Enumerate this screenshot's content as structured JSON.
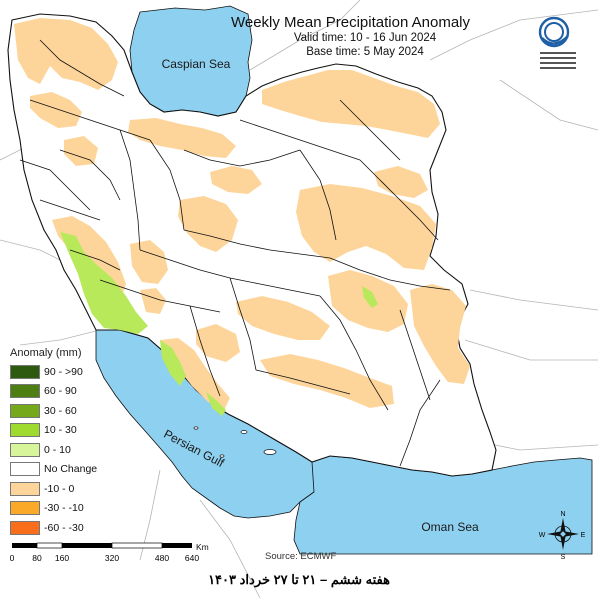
{
  "title": "Weekly Mean Precipitation Anomaly",
  "valid_time": "Valid time: 10 - 16 Jun 2024",
  "base_time": "Base time: 5 May 2024",
  "labels": {
    "caspian": "Caspian Sea",
    "persian_gulf": "Persian Gulf",
    "oman_sea": "Oman Sea"
  },
  "legend": {
    "title": "Anomaly (mm)",
    "items": [
      {
        "label": "90 - >90",
        "color": "#2d5a0f"
      },
      {
        "label": "60 - 90",
        "color": "#4c7e12"
      },
      {
        "label": "30 - 60",
        "color": "#76a81b"
      },
      {
        "label": "10 - 30",
        "color": "#9fdb2e"
      },
      {
        "label": "0 - 10",
        "color": "#d7f59a"
      },
      {
        "label": "No Change",
        "color": "#ffffff"
      },
      {
        "label": "-10 - 0",
        "color": "#fdd59a"
      },
      {
        "label": "-30 - -10",
        "color": "#fba928"
      },
      {
        "label": "-60 - -30",
        "color": "#f96e1a"
      }
    ]
  },
  "scale": {
    "unit": "Km",
    "ticks": [
      "0",
      "80",
      "160",
      "320",
      "480",
      "640"
    ]
  },
  "source": "Source: ECMWF",
  "compass": {
    "n": "N",
    "s": "S",
    "e": "E",
    "w": "W"
  },
  "footer": "هفته ششم – ۲۱ تا ۲۷ خرداد ۱۴۰۳",
  "colors": {
    "water": "#8ed0ef",
    "land_outside": "#ffffff",
    "negative_anomaly": "#fdd59a",
    "positive_anomaly": "#9fdb2e",
    "border": "#111111"
  }
}
